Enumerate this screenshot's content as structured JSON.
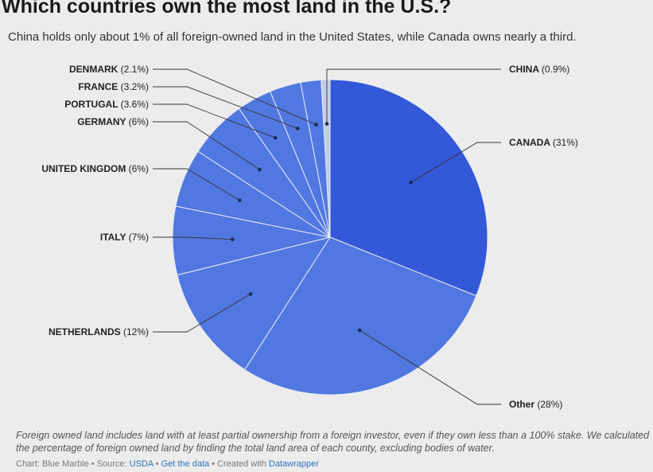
{
  "title": "Which countries own the most land in the U.S.?",
  "subtitle": "China holds only about 1% of all foreign-owned land in the United States, while Canada owns nearly a third.",
  "note": "Foreign owned land includes land with at least partial ownership from a foreign investor, even if they own less than a 100% stake. We calculated the percentage of foreign owned land by finding the total land area of each county, excluding bodies of water.",
  "credits": {
    "chart": "Chart: Blue Marble",
    "sep": " • ",
    "source_prefix": "Source: ",
    "source": "USDA",
    "get_data": "Get the data",
    "created": "Created with ",
    "datawrapper": "Datawrapper"
  },
  "chart_data": {
    "type": "pie",
    "title": "Which countries own the most land in the U.S.?",
    "slices": [
      {
        "name": "CANADA",
        "value": 31,
        "label": "(31%)",
        "color": "#3358d8"
      },
      {
        "name": "Other",
        "value": 28,
        "label": "(28%)",
        "color": "#5078e0"
      },
      {
        "name": "NETHERLANDS",
        "value": 12,
        "label": "(12%)",
        "color": "#5078e0"
      },
      {
        "name": "ITALY",
        "value": 7,
        "label": "(7%)",
        "color": "#5078e0"
      },
      {
        "name": "UNITED KINGDOM",
        "value": 6,
        "label": "(6%)",
        "color": "#5078e0"
      },
      {
        "name": "GERMANY",
        "value": 6,
        "label": "(6%)",
        "color": "#5078e0"
      },
      {
        "name": "PORTUGAL",
        "value": 3.6,
        "label": "(3.6%)",
        "color": "#5078e0"
      },
      {
        "name": "FRANCE",
        "value": 3.2,
        "label": "(3.2%)",
        "color": "#5078e0"
      },
      {
        "name": "DENMARK",
        "value": 2.1,
        "label": "(2.1%)",
        "color": "#5078e0"
      },
      {
        "name": "CHINA",
        "value": 0.9,
        "label": "(0.9%)",
        "color": "#c3cde6"
      }
    ]
  }
}
